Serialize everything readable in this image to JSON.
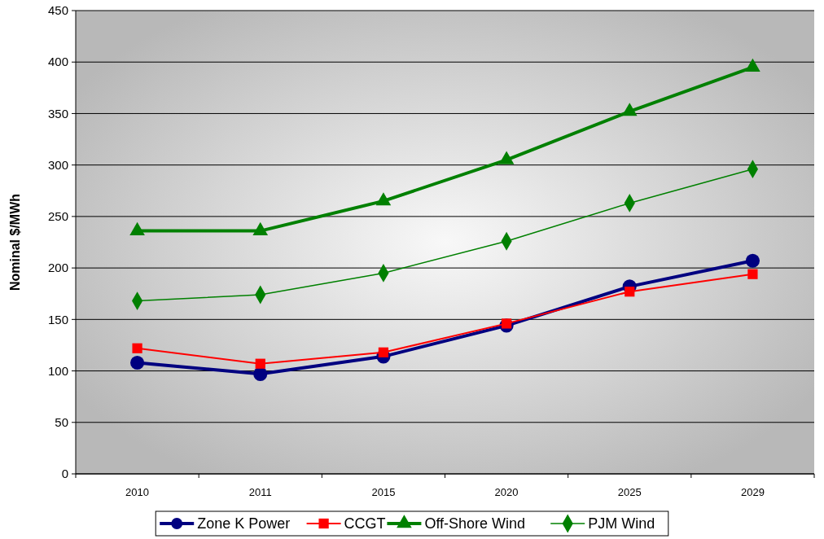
{
  "chart_data": {
    "type": "line",
    "ylabel": "Nominal $/MWh",
    "categories": [
      "2010",
      "2011",
      "2015",
      "2020",
      "2025",
      "2029"
    ],
    "series": [
      {
        "name": "Zone K Power",
        "color": "#000080",
        "marker": "circle",
        "values": [
          108,
          97,
          114,
          144,
          182,
          207
        ]
      },
      {
        "name": "CCGT",
        "color": "#ff0000",
        "marker": "square",
        "values": [
          122,
          107,
          118,
          146,
          177,
          194
        ]
      },
      {
        "name": "Off-Shore Wind",
        "color": "#008000",
        "marker": "triangle",
        "values": [
          236,
          236,
          265,
          305,
          352,
          395
        ]
      },
      {
        "name": "PJM Wind",
        "color": "#008000",
        "marker": "diamond",
        "values": [
          168,
          174,
          195,
          226,
          263,
          296
        ]
      }
    ],
    "ylim": [
      0,
      450
    ],
    "yticks": [
      0,
      50,
      100,
      150,
      200,
      250,
      300,
      350,
      400,
      450
    ],
    "grid": "y",
    "legend": "bottom"
  }
}
